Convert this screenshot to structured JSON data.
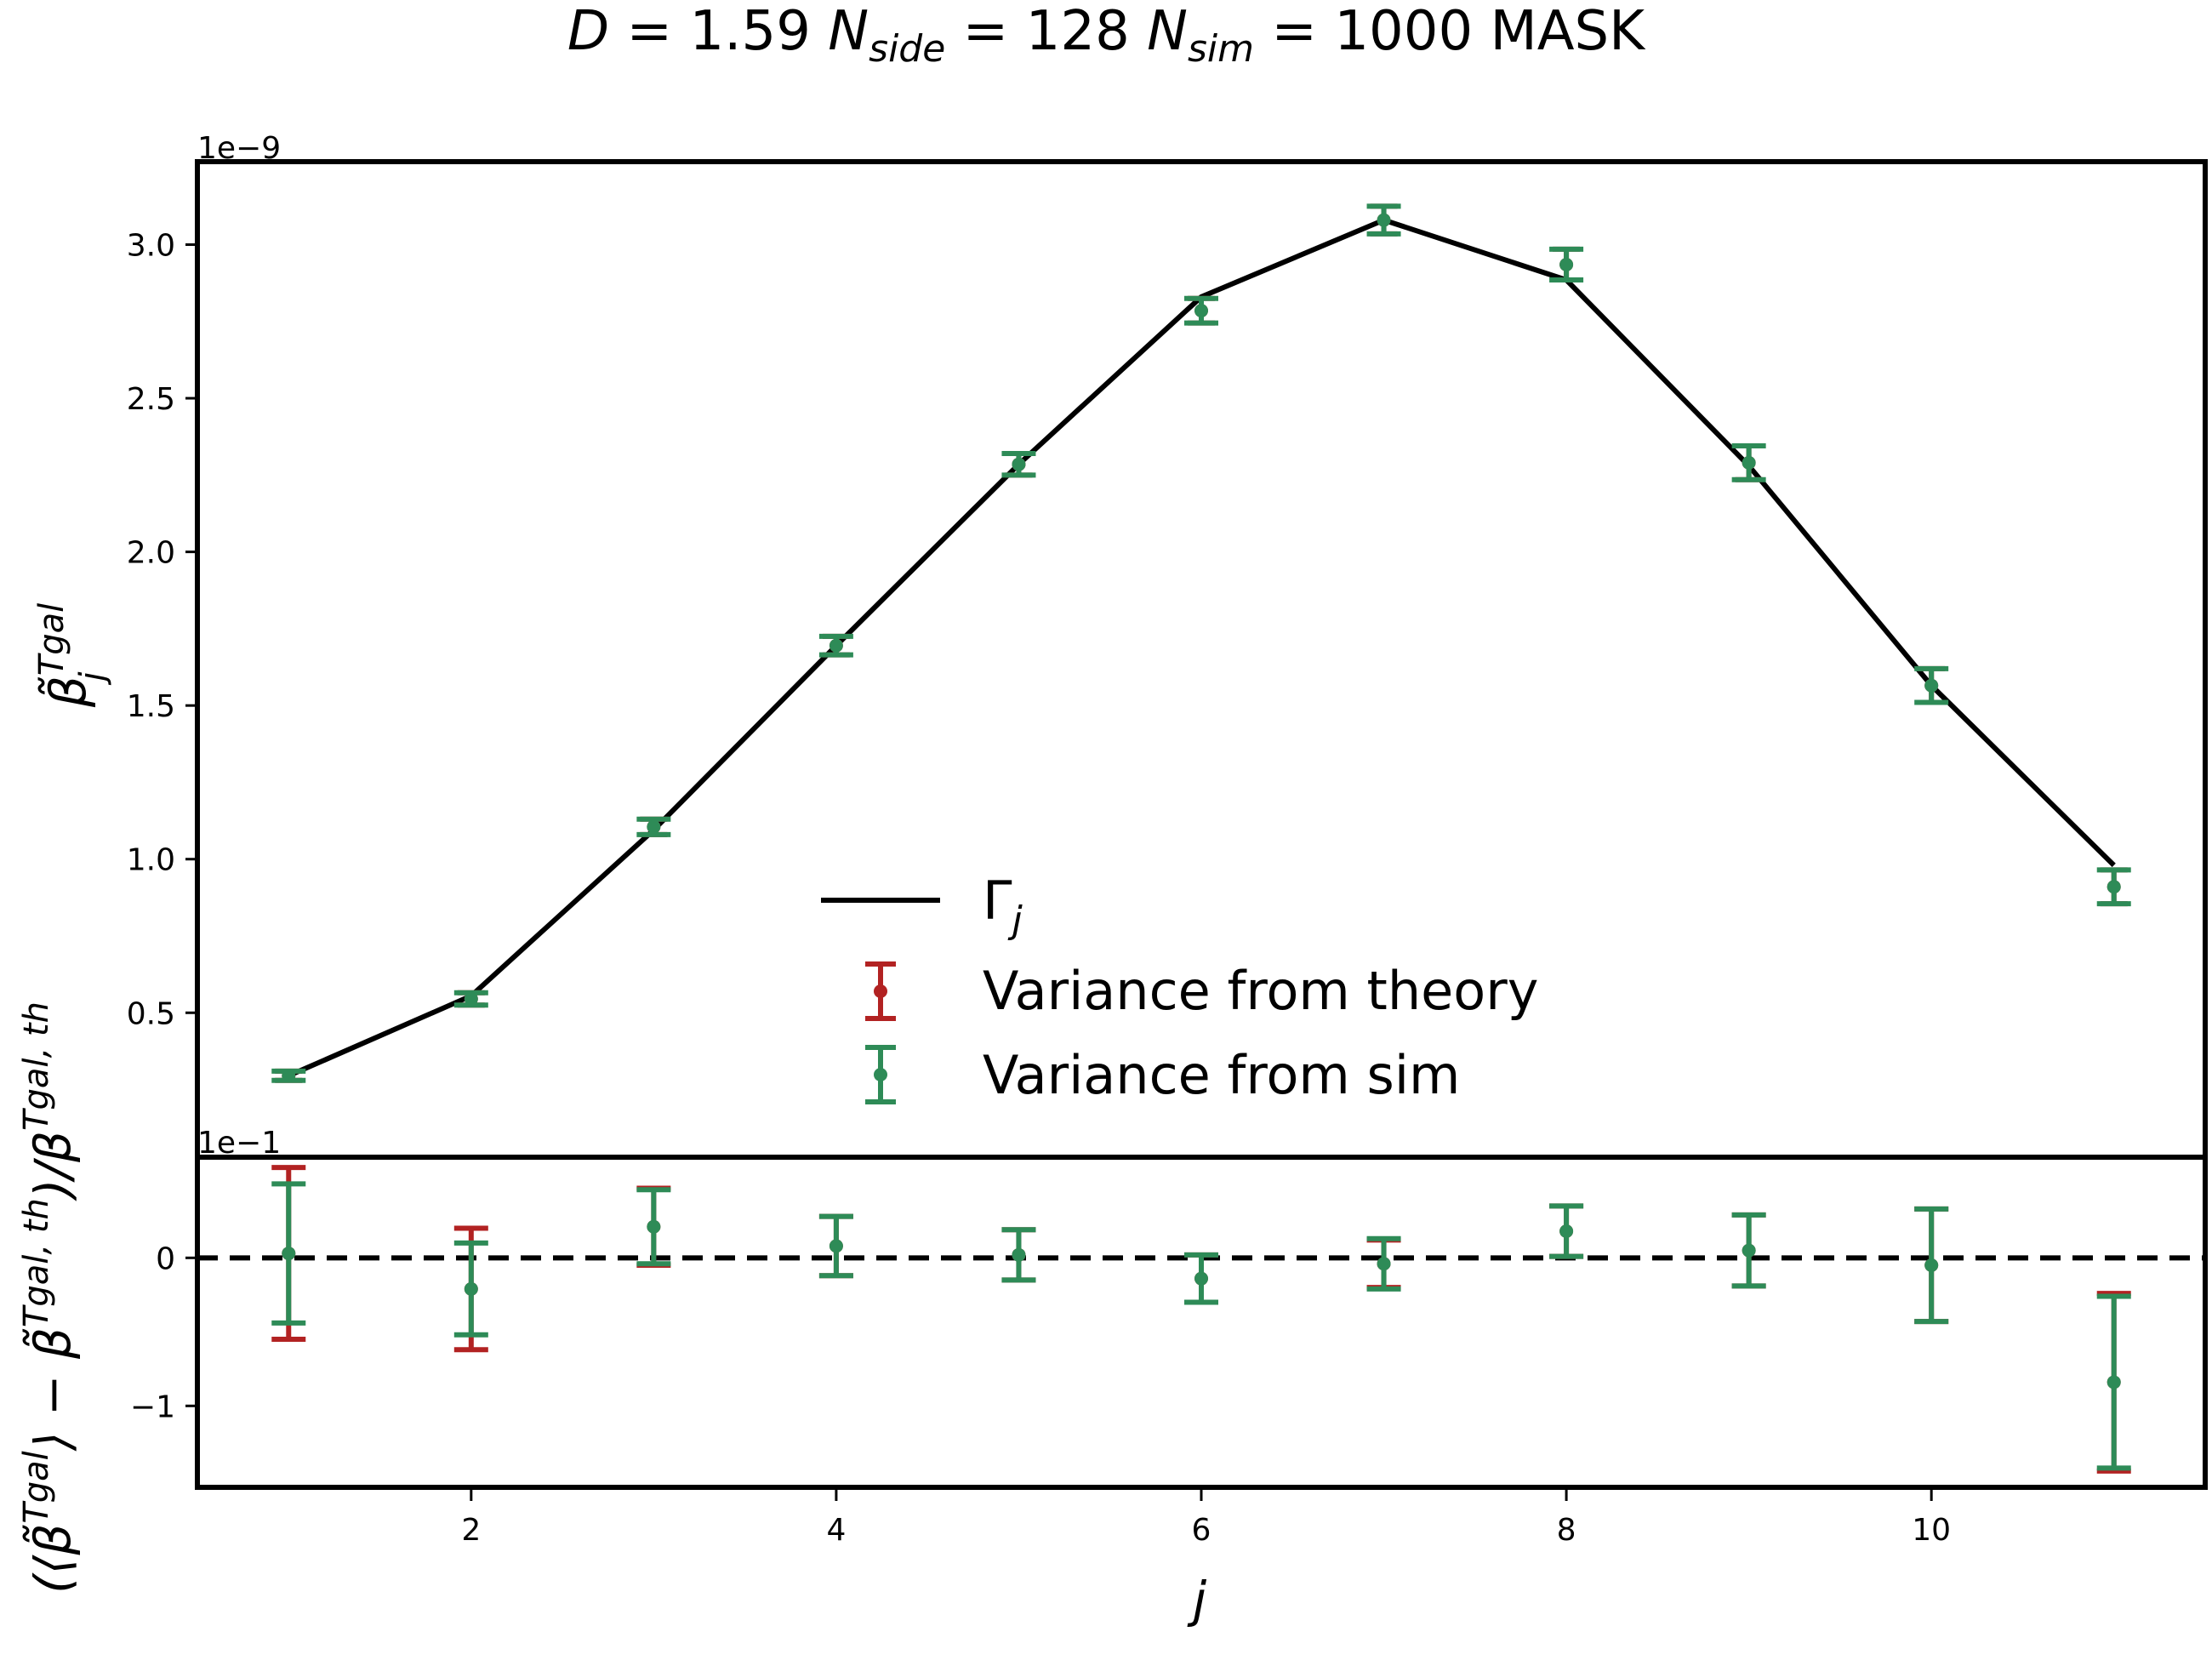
{
  "title": "D = 1.59  N_side = 128  N_sim = 1000  MASK",
  "title_parts": {
    "D": "D",
    "D_val": " = 1.59 ",
    "N": "N",
    "side": "side",
    "side_val": " = 128 ",
    "sim": "sim",
    "sim_val": " = 1000 MASK"
  },
  "colors": {
    "theory": "#b22222",
    "sim": "#2e8b57",
    "line": "#000000"
  },
  "chart_data": [
    {
      "type": "line",
      "panel": "top",
      "xlabel": "j",
      "ylabel": "β̃_j^Tgal",
      "ylabel_parts": {
        "sym": "β̃",
        "sub": "j",
        "sup": "Tgal"
      },
      "offset_label": "1e−9",
      "xlim": [
        0.5,
        11.5
      ],
      "ylim": [
        0.03,
        3.27
      ],
      "scale": 1e-09,
      "yticks": [
        0.5,
        1.0,
        1.5,
        2.0,
        2.5,
        3.0
      ],
      "ytick_labels": [
        "0.5",
        "1.0",
        "1.5",
        "2.0",
        "2.5",
        "3.0"
      ],
      "legend_position": "lower center",
      "legend": {
        "line_label": "Γ",
        "line_sub": "j",
        "theory_label": "Variance from theory",
        "sim_label": "Variance from sim"
      },
      "series": [
        {
          "name": "Γ_j",
          "kind": "line",
          "x": [
            1,
            2,
            3,
            4,
            5,
            6,
            7,
            8,
            9,
            10,
            11
          ],
          "y": [
            0.295,
            0.555,
            1.095,
            1.695,
            2.285,
            2.83,
            3.08,
            2.885,
            2.28,
            1.565,
            0.98
          ]
        },
        {
          "name": "Variance from theory",
          "kind": "errorbar",
          "x": [
            1,
            2,
            3,
            4,
            5,
            6,
            7,
            8,
            9,
            10,
            11
          ],
          "y": [
            0.295,
            0.545,
            1.105,
            1.695,
            2.285,
            2.785,
            3.08,
            2.935,
            2.29,
            1.565,
            0.91
          ],
          "yerr": [
            0.015,
            0.02,
            0.025,
            0.03,
            0.035,
            0.04,
            0.045,
            0.05,
            0.055,
            0.055,
            0.055
          ]
        },
        {
          "name": "Variance from sim",
          "kind": "errorbar",
          "x": [
            1,
            2,
            3,
            4,
            5,
            6,
            7,
            8,
            9,
            10,
            11
          ],
          "y": [
            0.295,
            0.545,
            1.105,
            1.695,
            2.285,
            2.785,
            3.08,
            2.935,
            2.29,
            1.565,
            0.91
          ],
          "yerr": [
            0.015,
            0.02,
            0.025,
            0.03,
            0.035,
            0.04,
            0.045,
            0.05,
            0.055,
            0.055,
            0.055
          ]
        }
      ]
    },
    {
      "type": "scatter",
      "panel": "bottom",
      "xlabel": "j",
      "xlabel_parts": {
        "sym": "j"
      },
      "ylabel": "(⟨β̃_j^Tgal⟩ − β̃_j^Tgal,th)/β_j^Tgal,th",
      "ylabel_parts": {
        "open": "(⟨",
        "sym1": "β̃",
        "close1": "⟩ − ",
        "sym2": "β̃",
        "mid": ")/",
        "sym3": "β",
        "sub": "j",
        "sup1": "Tgal",
        "sup2": "Tgal, th"
      },
      "offset_label": "1e−1",
      "xlim": [
        0.5,
        11.5
      ],
      "ylim": [
        -1.55,
        0.68
      ],
      "scale": 0.1,
      "xticks": [
        2,
        4,
        6,
        8,
        10
      ],
      "xtick_labels": [
        "2",
        "4",
        "6",
        "8",
        "10"
      ],
      "yticks": [
        -1,
        0
      ],
      "ytick_labels": [
        "−1",
        "0"
      ],
      "reference_line": 0,
      "series": [
        {
          "name": "Variance from theory",
          "kind": "errorbar",
          "x": [
            1,
            2,
            3,
            4,
            5,
            6,
            7,
            8,
            9,
            10,
            11
          ],
          "y": [
            0.03,
            -0.21,
            0.21,
            0.08,
            0.02,
            -0.14,
            -0.04,
            0.18,
            0.05,
            -0.05,
            -0.84
          ],
          "yerr": [
            0.58,
            0.41,
            0.26,
            0.2,
            0.17,
            0.16,
            0.16,
            0.17,
            0.24,
            0.38,
            0.6
          ]
        },
        {
          "name": "Variance from sim",
          "kind": "errorbar",
          "x": [
            1,
            2,
            3,
            4,
            5,
            6,
            7,
            8,
            9,
            10,
            11
          ],
          "y": [
            0.03,
            -0.21,
            0.21,
            0.08,
            0.02,
            -0.14,
            -0.04,
            0.18,
            0.05,
            -0.05,
            -0.84
          ],
          "yerr": [
            0.47,
            0.31,
            0.25,
            0.2,
            0.17,
            0.16,
            0.17,
            0.17,
            0.24,
            0.38,
            0.58
          ]
        }
      ]
    }
  ]
}
